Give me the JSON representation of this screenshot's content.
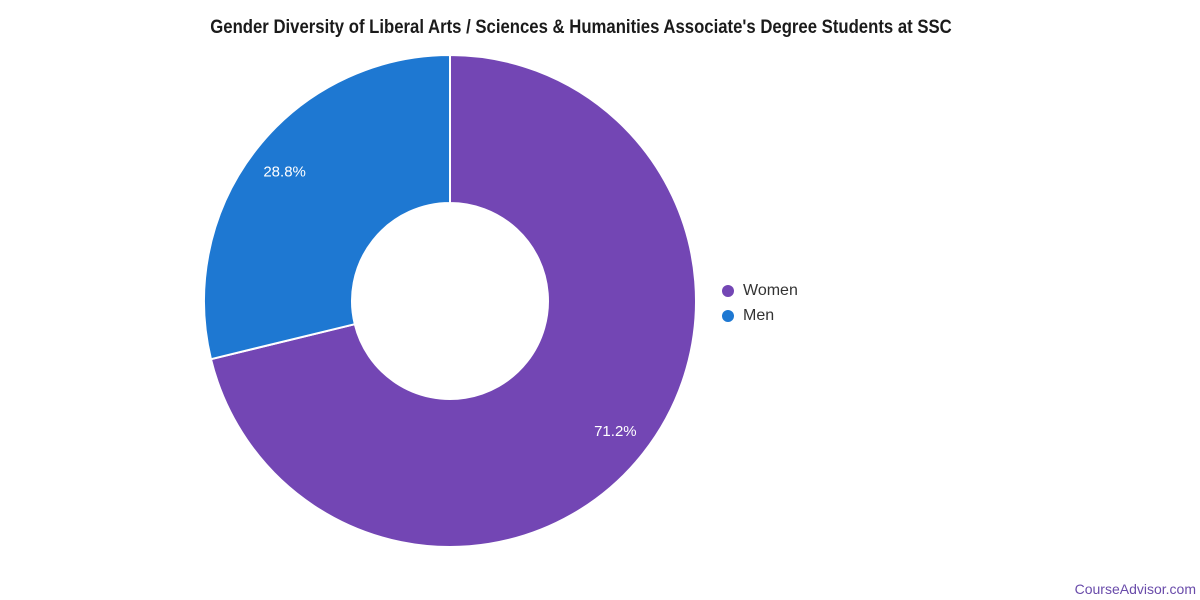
{
  "page": {
    "background": "#ffffff",
    "footer": {
      "label": "CourseAdvisor.com",
      "color": "#694baa"
    }
  },
  "chart_data": {
    "type": "pie",
    "subtype": "donut",
    "title": "Gender Diversity of Liberal Arts / Sciences & Humanities Associate's Degree Students at SSC",
    "categories": [
      "Women",
      "Men"
    ],
    "values": [
      71.2,
      28.8
    ],
    "slice_labels": [
      "71.2%",
      "28.8%"
    ],
    "colors": [
      "#7346b4",
      "#1e78d2"
    ],
    "slice_label_color": "#ffffff",
    "slice_border_color": "#ffffff",
    "start_angle_deg": 0,
    "direction": "clockwise",
    "inner_radius_ratio": 0.4,
    "legend": {
      "position": "right",
      "entries": [
        {
          "label": "Women",
          "color": "#7346b4"
        },
        {
          "label": "Men",
          "color": "#1e78d2"
        }
      ]
    }
  }
}
